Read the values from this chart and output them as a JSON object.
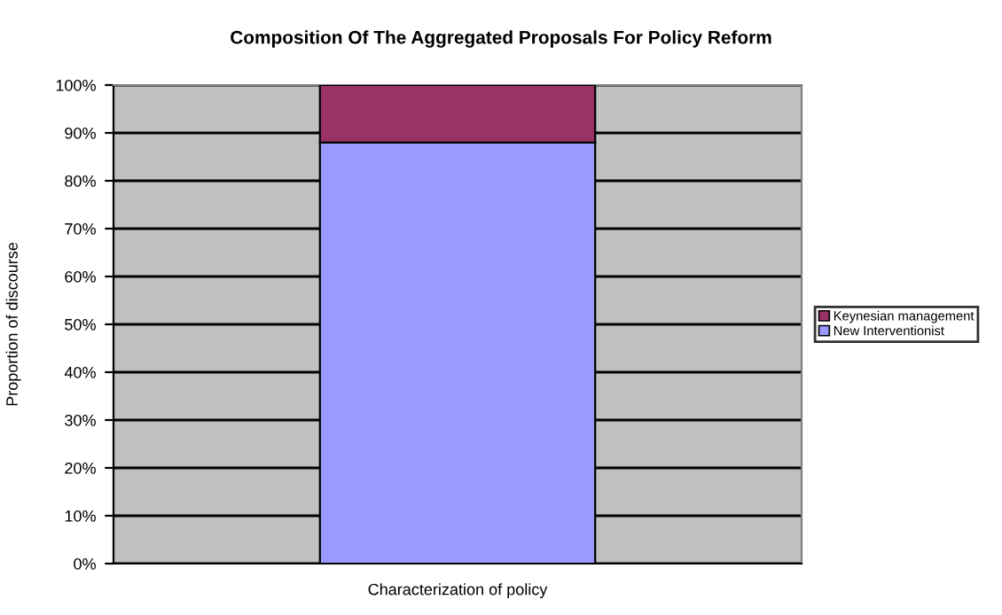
{
  "chart_data": {
    "type": "bar",
    "title": "Composition Of The Aggregated Proposals For Policy Reform",
    "ylabel": "Proportion of discourse",
    "categories": [
      "Characterization of policy"
    ],
    "stacked": true,
    "series": [
      {
        "name": "New Interventionist",
        "color": "#9999ff",
        "values": [
          88
        ]
      },
      {
        "name": "Keynesian management",
        "color": "#993366",
        "values": [
          12
        ]
      }
    ],
    "ylim": [
      0,
      100
    ],
    "yticks": [
      {
        "value": 0,
        "label": "0%"
      },
      {
        "value": 10,
        "label": "10%"
      },
      {
        "value": 20,
        "label": "20%"
      },
      {
        "value": 30,
        "label": "30%"
      },
      {
        "value": 40,
        "label": "40%"
      },
      {
        "value": 50,
        "label": "50%"
      },
      {
        "value": 60,
        "label": "60%"
      },
      {
        "value": 70,
        "label": "70%"
      },
      {
        "value": 80,
        "label": "80%"
      },
      {
        "value": 90,
        "label": "90%"
      },
      {
        "value": 100,
        "label": "100%"
      }
    ],
    "grid": "y",
    "legend": "right"
  }
}
